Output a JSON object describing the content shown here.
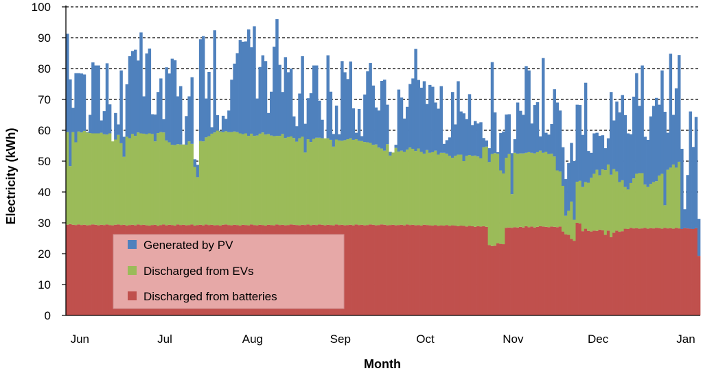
{
  "chart_data": {
    "type": "bar",
    "stacked": true,
    "title": "",
    "xlabel": "Month",
    "ylabel": "Electricity (kWh)",
    "ylim": [
      0,
      100
    ],
    "yticks": [
      0,
      10,
      20,
      30,
      40,
      50,
      60,
      70,
      80,
      90,
      100
    ],
    "month_labels": [
      "Jun",
      "Jul",
      "Aug",
      "Sep",
      "Oct",
      "Nov",
      "Dec",
      "Jan"
    ],
    "month_day_index": [
      0,
      30,
      61,
      92,
      122,
      153,
      183,
      214
    ],
    "legend_position": "bottom-left",
    "grid": "horizontal-dashed",
    "series": [
      {
        "name": "Discharged from batteries",
        "color": "#c0504d",
        "values": [
          29.4,
          29.6,
          29.4,
          29.3,
          29.5,
          29.3,
          29.4,
          29.2,
          29.3,
          29.5,
          29.4,
          29.2,
          29.4,
          29.3,
          29.5,
          29.3,
          29.2,
          29.4,
          29.5,
          29.3,
          29.4,
          29.1,
          29.3,
          29.4,
          29.2,
          29.5,
          29.3,
          29.4,
          29.2,
          29.1,
          29.3,
          29.4,
          29.0,
          29.3,
          29.5,
          29.2,
          29.4,
          29.3,
          29.1,
          29.5,
          29.3,
          29.4,
          29.2,
          29.3,
          29.5,
          29.1,
          29.3,
          29.4,
          29.2,
          29.5,
          29.3,
          29.4,
          29.2,
          29.3,
          29.1,
          29.4,
          29.5,
          29.3,
          29.2,
          29.4,
          29.3,
          29.1,
          29.4,
          29.3,
          29.2,
          29.5,
          29.3,
          29.2,
          29.4,
          29.3,
          29.1,
          29.4,
          29.3,
          29.2,
          29.5,
          29.3,
          29.4,
          29.2,
          29.3,
          29.5,
          29.4,
          29.3,
          29.2,
          29.4,
          29.3,
          29.5,
          29.2,
          29.4,
          29.3,
          29.5,
          29.4,
          29.2,
          29.4,
          29.3,
          29.2,
          29.5,
          29.3,
          29.4,
          29.2,
          29.3,
          29.4,
          29.2,
          29.5,
          29.3,
          29.4,
          29.2,
          29.3,
          29.5,
          29.4,
          29.2,
          29.3,
          29.5,
          29.4,
          29.2,
          29.3,
          29.4,
          29.2,
          29.3,
          29.4,
          29.2,
          29.5,
          29.3,
          29.4,
          29.2,
          29.3,
          29.1,
          29.4,
          29.3,
          29.2,
          29.1,
          29.3,
          29.0,
          29.2,
          29.1,
          29.3,
          29.0,
          29.2,
          29.1,
          28.9,
          29.1,
          29.0,
          28.8,
          29.0,
          28.9,
          28.7,
          28.9,
          28.8,
          28.9,
          28.7,
          22.8,
          22.5,
          22.6,
          23.4,
          23.2,
          23.1,
          28.4,
          28.5,
          28.4,
          28.6,
          28.5,
          28.7,
          28.5,
          28.9,
          28.6,
          28.8,
          28.5,
          28.7,
          28.9,
          28.8,
          28.7,
          28.6,
          28.8,
          28.7,
          28.6,
          28.8,
          27.2,
          26.3,
          26.1,
          24.8,
          24.2,
          30.0,
          29.8,
          27.3,
          28.1,
          27.4,
          27.2,
          27.5,
          27.4,
          27.8,
          27.6,
          26.1,
          27.5,
          25.4,
          26.8,
          27.5,
          27.1,
          27.3,
          28.1,
          28.0,
          28.4,
          28.2,
          28.3,
          28.1,
          28.2,
          28.4,
          28.1,
          28.3,
          28.2,
          28.4,
          28.3,
          28.1,
          28.4,
          28.2,
          28.3,
          28.1,
          28.4,
          28.2,
          28.0,
          28.3,
          28.2,
          28.1,
          28.0,
          28.3,
          19.3
        ]
      },
      {
        "name": "Discharged from EVs",
        "color": "#9bbb59",
        "values": [
          30.0,
          18.8,
          30.0,
          26.8,
          30.1,
          30.0,
          30.4,
          30.1,
          29.8,
          29.5,
          29.6,
          29.8,
          29.8,
          29.4,
          29.1,
          29.7,
          27.2,
          27.6,
          29.0,
          26.5,
          22.0,
          28.8,
          28.1,
          29.4,
          29.0,
          29.8,
          29.7,
          29.5,
          29.5,
          29.9,
          29.5,
          27.0,
          30.1,
          30.1,
          29.8,
          27.5,
          26.7,
          26.0,
          26.1,
          26.0,
          26.1,
          26.0,
          26.1,
          27.1,
          26.1,
          19.0,
          15.5,
          27.1,
          27.2,
          28.2,
          28.8,
          29.5,
          30.1,
          30.6,
          30.5,
          30.0,
          30.2,
          30.1,
          30.2,
          30.2,
          30.1,
          29.9,
          29.3,
          29.7,
          29.0,
          29.4,
          28.9,
          29.1,
          29.5,
          30.0,
          29.5,
          29.4,
          29.0,
          28.9,
          28.7,
          28.9,
          29.4,
          28.3,
          28.5,
          28.5,
          28.1,
          27.0,
          28.2,
          28.5,
          23.5,
          27.6,
          27.0,
          27.8,
          28.3,
          28.1,
          28.0,
          28.2,
          28.0,
          27.6,
          25.5,
          27.5,
          27.4,
          27.2,
          27.6,
          27.8,
          28.0,
          27.7,
          27.6,
          27.3,
          27.1,
          27.0,
          26.8,
          26.4,
          25.9,
          26.2,
          25.1,
          24.6,
          24.0,
          26.3,
          22.5,
          23.4,
          25.1,
          23.8,
          24.0,
          23.8,
          24.2,
          25.1,
          24.6,
          24.1,
          24.8,
          23.9,
          23.0,
          24.3,
          23.5,
          23.8,
          24.1,
          23.1,
          23.5,
          23.6,
          23.1,
          22.7,
          21.9,
          22.6,
          23.2,
          23.0,
          21.0,
          22.9,
          23.0,
          22.8,
          23.1,
          22.6,
          22.1,
          25.6,
          26.0,
          26.9,
          29.8,
          30.0,
          29.0,
          23.8,
          22.9,
          22.7,
          23.8,
          10.9,
          24.1,
          23.9,
          23.8,
          24.0,
          23.8,
          24.3,
          23.9,
          24.0,
          24.2,
          24.5,
          23.9,
          24.3,
          23.7,
          23.6,
          22.8,
          18.4,
          17.8,
          14.8,
          6.0,
          7.8,
          12.1,
          6.8,
          13.3,
          13.8,
          14.3,
          15.1,
          15.6,
          17.4,
          18.4,
          19.8,
          17.6,
          19.7,
          21.0,
          21.4,
          20.2,
          20.6,
          19.1,
          16.1,
          16.5,
          13.5,
          12.8,
          14.5,
          16.2,
          17.6,
          18.0,
          17.9,
          14.0,
          13.5,
          14.3,
          15.0,
          15.1,
          17.0,
          17.8,
          7.3,
          19.0,
          19.6,
          20.8,
          19.5,
          21.6,
          0.0
        ]
      },
      {
        "name": "Generated by PV",
        "color": "#4f81bd",
        "values": [
          31.9,
          28.1,
          7.9,
          22.4,
          18.9,
          19.1,
          18.3,
          0.2,
          5.9,
          23.0,
          22.0,
          22.0,
          4.0,
          7.5,
          23.1,
          9.4,
          0.0,
          8.6,
          3.4,
          23.6,
          6.5,
          17.0,
          26.6,
          26.9,
          27.9,
          23.3,
          32.7,
          12.1,
          26.2,
          27.5,
          6.4,
          8.7,
          13.3,
          17.4,
          4.3,
          23.7,
          22.3,
          27.9,
          27.5,
          15.5,
          18.9,
          0.0,
          9.3,
          14.6,
          21.6,
          2.5,
          4.0,
          33.0,
          34.1,
          12.6,
          20.8,
          2.1,
          33.1,
          5.0,
          0.2,
          5.3,
          4.0,
          7.0,
          17.0,
          22.0,
          25.6,
          30.3,
          30.0,
          29.8,
          34.5,
          28.0,
          35.5,
          12.0,
          21.6,
          25.0,
          23.8,
          6.8,
          14.2,
          29.0,
          37.8,
          23.0,
          13.6,
          26.2,
          21.0,
          22.0,
          7.0,
          5.0,
          14.5,
          26.1,
          9.3,
          13.3,
          15.8,
          23.8,
          23.4,
          12.0,
          6.0,
          0.0,
          26.9,
          15.6,
          4.1,
          11.0,
          2.0,
          25.8,
          22.0,
          19.5,
          24.9,
          10.2,
          2.1,
          10.3,
          1.6,
          15.4,
          23.0,
          25.9,
          19.2,
          12.0,
          12.0,
          21.9,
          23.0,
          12.8,
          1.2,
          0.0,
          1.0,
          20.1,
          17.2,
          10.8,
          13.9,
          20.6,
          22.8,
          33.1,
          22.2,
          20.8,
          23.5,
          14.9,
          22.0,
          21.2,
          15.6,
          14.9,
          21.6,
          2.9,
          4.4,
          6.0,
          21.3,
          10.2,
          23.8,
          14.0,
          15.5,
          11.9,
          19.7,
          10.0,
          11.2,
          10.7,
          11.7,
          3.0,
          2.0,
          4.5,
          29.8,
          13.2,
          0.5,
          12.1,
          13.6,
          14.0,
          12.9,
          13.3,
          4.4,
          16.6,
          13.8,
          12.5,
          28.1,
          26.5,
          9.5,
          15.7,
          16.2,
          4.6,
          30.7,
          6.2,
          6.3,
          9.6,
          21.8,
          22.0,
          19.8,
          12.5,
          11.9,
          15.5,
          19.0,
          19.0,
          25.0,
          24.6,
          16.9,
          32.2,
          10.3,
          8.1,
          13.1,
          12.0,
          12.8,
          11.1,
          7.1,
          8.5,
          26.8,
          15.8,
          22.7,
          22.6,
          27.6,
          23.3,
          18.2,
          15.8,
          26.5,
          32.6,
          21.8,
          34.9,
          15.5,
          15.3,
          21.9,
          24.7,
          27.0,
          23.0,
          33.5,
          30.3,
          12.0,
          36.9,
          16.1,
          25.7,
          34.6,
          26.0,
          6.1,
          17.3,
          38.0,
          26.6,
          36.0,
          12.0
        ]
      }
    ]
  }
}
